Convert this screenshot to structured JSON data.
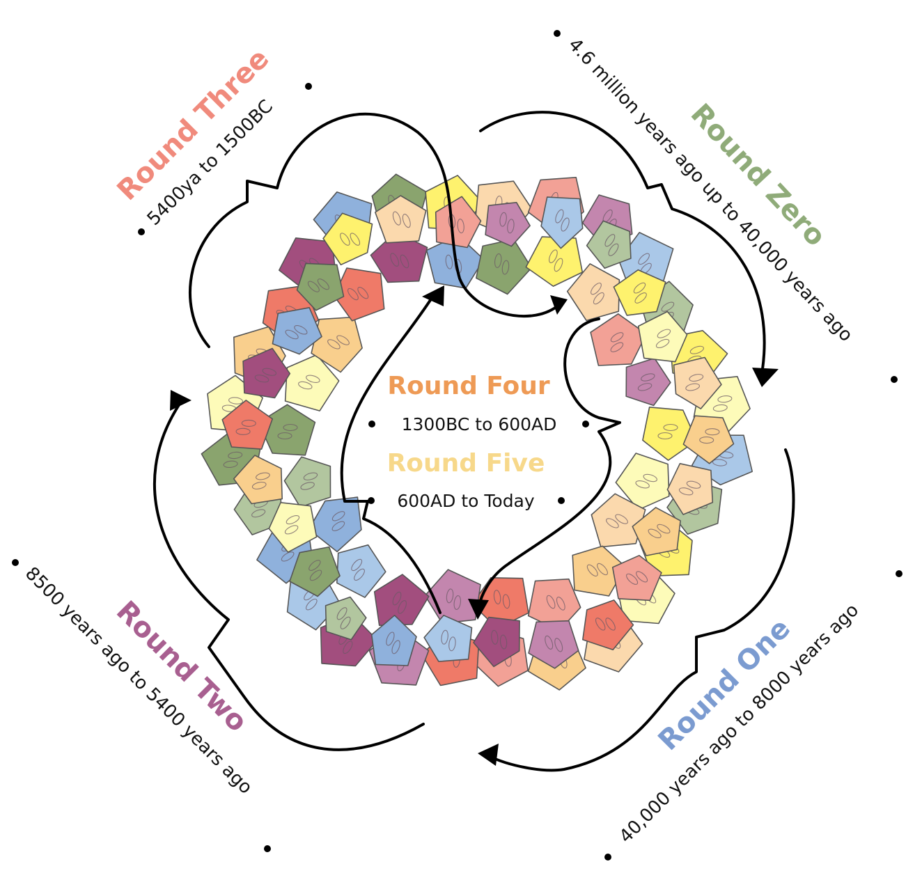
{
  "diagram": {
    "rounds": [
      {
        "id": "zero",
        "title": "Round Zero",
        "range": "4.6 million years ago up to 40,000 years ago",
        "color": "#8fab79"
      },
      {
        "id": "one",
        "title": "Round One",
        "range": "40,000 years ago to 8000 years ago",
        "color": "#7b9bd0"
      },
      {
        "id": "two",
        "title": "Round Two",
        "range": "8500 years ago to 5400 years ago",
        "color": "#a85f90"
      },
      {
        "id": "three",
        "title": "Round Three",
        "range": "5400ya to 1500BC",
        "color": "#f08a7c"
      },
      {
        "id": "four",
        "title": "Round Four",
        "range": "1300BC to 600AD",
        "color": "#ee9a55"
      },
      {
        "id": "five",
        "title": "Round Five",
        "range": "600AD to Today",
        "color": "#f7d88a"
      }
    ],
    "tile_palette": [
      "#fdfbb9",
      "#fef26e",
      "#f9cf8d",
      "#fbd9ad",
      "#ef7a68",
      "#f2a196",
      "#a24e7e",
      "#c386ae",
      "#8fb1dc",
      "#aac8e8",
      "#8aa46e",
      "#b2c69f"
    ],
    "tile_color_sequence": [
      1,
      0,
      3,
      2,
      5,
      4,
      7,
      6,
      9,
      8,
      11,
      10,
      0,
      2,
      4,
      6,
      8,
      10,
      1,
      3,
      5,
      7,
      9,
      11
    ]
  }
}
